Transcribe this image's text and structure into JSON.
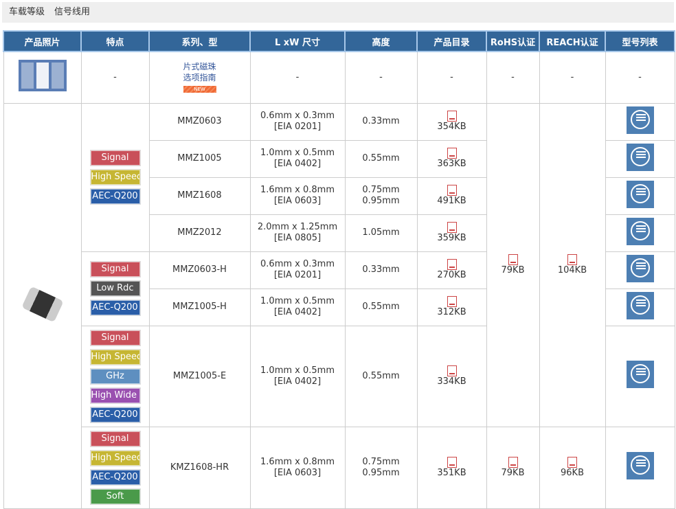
{
  "breadcrumb": [
    "车载等级",
    "信号线用"
  ],
  "headers": [
    "产品照片",
    "特点",
    "系列、型",
    "L xW 尺寸",
    "高度",
    "产品目录",
    "RoHS认证",
    "REACH认证",
    "型号列表"
  ],
  "guide_row": {
    "text1": "片式磁珠",
    "text2": "选项指南",
    "new": "NEW",
    "dash": "-"
  },
  "rows": [
    {
      "series": "MMZ0603",
      "size1": "0.6mm x 0.3mm",
      "size2": "[EIA 0201]",
      "height1": "0.33mm",
      "height2": "",
      "catalog": "354KB"
    },
    {
      "series": "MMZ1005",
      "size1": "1.0mm x 0.5mm",
      "size2": "[EIA 0402]",
      "height1": "0.55mm",
      "height2": "",
      "catalog": "363KB"
    },
    {
      "series": "MMZ1608",
      "size1": "1.6mm x 0.8mm",
      "size2": "[EIA 0603]",
      "height1": "0.75mm",
      "height2": "0.95mm",
      "catalog": "491KB"
    },
    {
      "series": "MMZ2012",
      "size1": "2.0mm x 1.25mm",
      "size2": "[EIA 0805]",
      "height1": "1.05mm",
      "height2": "",
      "catalog": "359KB"
    },
    {
      "series": "MMZ0603-H",
      "size1": "0.6mm x 0.3mm",
      "size2": "[EIA 0201]",
      "height1": "0.33mm",
      "height2": "",
      "catalog": "270KB"
    },
    {
      "series": "MMZ1005-H",
      "size1": "1.0mm x 0.5mm",
      "size2": "[EIA 0402]",
      "height1": "0.55mm",
      "height2": "",
      "catalog": "312KB"
    },
    {
      "series": "MMZ1005-E",
      "size1": "1.0mm x 0.5mm",
      "size2": "[EIA 0402]",
      "height1": "0.55mm",
      "height2": "",
      "catalog": "334KB"
    },
    {
      "series": "KMZ1608-HR",
      "size1": "1.6mm x 0.8mm",
      "size2": "[EIA 0603]",
      "height1": "0.75mm",
      "height2": "0.95mm",
      "catalog": "351KB"
    }
  ],
  "feature_groups": [
    [
      {
        "label": "Signal",
        "color": "#c9505a"
      },
      {
        "label": "High Speed",
        "color": "#c6b633"
      },
      {
        "label": "AEC-Q200",
        "color": "#2a5ea8"
      }
    ],
    [
      {
        "label": "Signal",
        "color": "#c9505a"
      },
      {
        "label": "Low Rdc",
        "color": "#555555"
      },
      {
        "label": "AEC-Q200",
        "color": "#2a5ea8"
      }
    ],
    [
      {
        "label": "Signal",
        "color": "#c9505a"
      },
      {
        "label": "High Speed",
        "color": "#c6b633"
      },
      {
        "label": "GHz",
        "color": "#5e8fc0"
      },
      {
        "label": "High Wide Z",
        "color": "#9a50b0"
      },
      {
        "label": "AEC-Q200",
        "color": "#2a5ea8"
      }
    ],
    [
      {
        "label": "Signal",
        "color": "#c9505a"
      },
      {
        "label": "High Speed",
        "color": "#c6b633"
      },
      {
        "label": "AEC-Q200",
        "color": "#2a5ea8"
      },
      {
        "label": "Soft",
        "color": "#4a9a4a"
      }
    ]
  ],
  "rohs": [
    "79KB",
    "79KB"
  ],
  "reach": [
    "104KB",
    "96KB"
  ]
}
